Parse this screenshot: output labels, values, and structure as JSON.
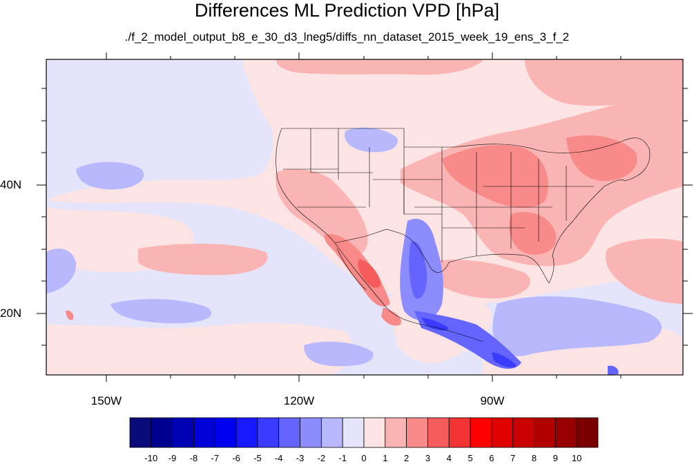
{
  "title": "Differences ML Prediction VPD [hPa]",
  "subtitle": "./f_2_model_output_b8_e_30_d3_lneg5/diffs_nn_dataset_2015_week_19_ens_3_f_2",
  "lon_labels": [
    "150W",
    "120W",
    "90W"
  ],
  "lat_labels": [
    "40N",
    "20N"
  ],
  "colorbar": {
    "labels": [
      "-10",
      "-9",
      "-8",
      "-7",
      "-6",
      "-5",
      "-4",
      "-3",
      "-2",
      "-1",
      "0",
      "1",
      "2",
      "3",
      "4",
      "5",
      "6",
      "7",
      "8",
      "9",
      "10"
    ],
    "colors": [
      "#0a0a78",
      "#00008f",
      "#0000b4",
      "#0000d8",
      "#0000f0",
      "#1818ff",
      "#3b3bff",
      "#6464ff",
      "#8c8cff",
      "#b8b8ff",
      "#e4e4fa",
      "#fde4e4",
      "#fbb4b4",
      "#f88a8a",
      "#f65c5c",
      "#f43434",
      "#ff0000",
      "#e00000",
      "#c80000",
      "#b00000",
      "#960000",
      "#7a0000"
    ]
  }
}
